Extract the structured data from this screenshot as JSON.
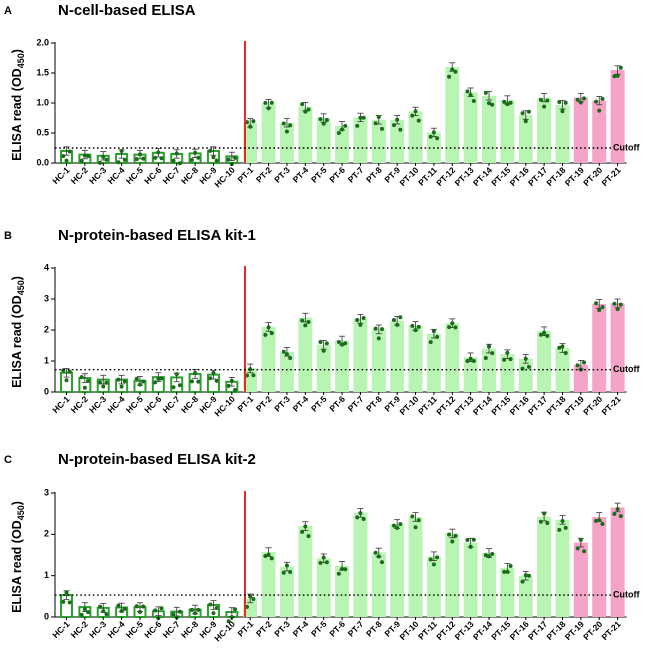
{
  "colors": {
    "hc_fill": "#ffffff",
    "hc_stroke": "#2ca02c",
    "pt_fill": "#b8f5b3",
    "pt_pink": "#f5a3c7",
    "dot": "#1a6b1a",
    "red_line": "#e8292b",
    "cutoff_line": "#000000"
  },
  "chart_data": [
    {
      "panel_letter": "A",
      "title": "N-cell-based ELISA",
      "type": "bar",
      "ylabel_main": "ELISA read (OD",
      "ylabel_sub": "450",
      "ylabel_close": ")",
      "ylim": [
        0,
        2.0
      ],
      "yticks": [
        0.0,
        0.5,
        1.0,
        1.5,
        2.0
      ],
      "ytick_labels": [
        "0.0",
        "0.5",
        "1.0",
        "1.5",
        "2.0"
      ],
      "cutoff": 0.25,
      "cutoff_label": "Cutoff",
      "categories": [
        "HC-1",
        "HC-2",
        "HC-3",
        "HC-4",
        "HC-5",
        "HC-6",
        "HC-7",
        "HC-8",
        "HC-9",
        "HC-10",
        "PT-1",
        "PT-2",
        "PT-3",
        "PT-4",
        "PT-5",
        "PT-6",
        "PT-7",
        "PT-8",
        "PT-9",
        "PT-10",
        "PT-11",
        "PT-12",
        "PT-13",
        "PT-14",
        "PT-15",
        "PT-16",
        "PT-17",
        "PT-18",
        "PT-19",
        "PT-20",
        "PT-21"
      ],
      "groups": [
        "HC",
        "HC",
        "HC",
        "HC",
        "HC",
        "HC",
        "HC",
        "HC",
        "HC",
        "HC",
        "PT",
        "PT",
        "PT",
        "PT",
        "PT",
        "PT",
        "PT",
        "PT",
        "PT",
        "PT",
        "PT",
        "PT",
        "PT",
        "PT",
        "PT",
        "PT",
        "PT",
        "PT",
        "PT-pink",
        "PT-pink",
        "PT-pink"
      ],
      "values": [
        0.2,
        0.14,
        0.12,
        0.15,
        0.14,
        0.17,
        0.15,
        0.16,
        0.2,
        0.11,
        0.67,
        0.99,
        0.67,
        0.94,
        0.75,
        0.62,
        0.76,
        0.72,
        0.72,
        0.86,
        0.51,
        1.6,
        1.18,
        1.12,
        1.05,
        0.8,
        1.09,
        0.97,
        1.09,
        1.04,
        1.55
      ]
    },
    {
      "panel_letter": "B",
      "title": "N-protein-based ELISA kit-1",
      "type": "bar",
      "ylabel_main": "ELISA read (OD",
      "ylabel_sub": "450",
      "ylabel_close": ")",
      "ylim": [
        0,
        4
      ],
      "yticks": [
        0,
        1,
        2,
        3,
        4
      ],
      "ytick_labels": [
        "0",
        "1",
        "2",
        "3",
        "4"
      ],
      "cutoff": 0.72,
      "cutoff_label": "Cutoff",
      "categories": [
        "HC-1",
        "HC-2",
        "HC-3",
        "HC-4",
        "HC-5",
        "HC-6",
        "HC-7",
        "HC-8",
        "HC-9",
        "HC-10",
        "PT-1",
        "PT-2",
        "PT-3",
        "PT-4",
        "PT-5",
        "PT-6",
        "PT-7",
        "PT-8",
        "PT-9",
        "PT-10",
        "PT-11",
        "PT-12",
        "PT-13",
        "PT-14",
        "PT-15",
        "PT-16",
        "PT-17",
        "PT-18",
        "PT-19",
        "PT-20",
        "PT-21"
      ],
      "groups": [
        "HC",
        "HC",
        "HC",
        "HC",
        "HC",
        "HC",
        "HC",
        "HC",
        "HC",
        "HC",
        "PT",
        "PT",
        "PT",
        "PT",
        "PT",
        "PT",
        "PT",
        "PT",
        "PT",
        "PT",
        "PT",
        "PT",
        "PT",
        "PT",
        "PT",
        "PT",
        "PT",
        "PT",
        "PT-pink",
        "PT-pink",
        "PT-pink"
      ],
      "values": [
        0.62,
        0.45,
        0.4,
        0.4,
        0.36,
        0.48,
        0.47,
        0.58,
        0.56,
        0.33,
        0.76,
        2.1,
        1.3,
        2.4,
        1.52,
        1.66,
        2.36,
        2.02,
        2.3,
        2.13,
        1.88,
        2.22,
        1.12,
        1.4,
        1.22,
        1.07,
        1.96,
        1.42,
        0.88,
        2.84,
        2.86
      ]
    },
    {
      "panel_letter": "C",
      "title": "N-protein-based ELISA kit-2",
      "type": "bar",
      "ylabel_main": "ELISA read (OD",
      "ylabel_sub": "450",
      "ylabel_close": ")",
      "ylim": [
        0,
        3
      ],
      "yticks": [
        0,
        1,
        2,
        3
      ],
      "ytick_labels": [
        "0",
        "1",
        "2",
        "3"
      ],
      "cutoff": 0.53,
      "cutoff_label": "Cutoff",
      "categories": [
        "HC-1",
        "HC-2",
        "HC-3",
        "HC-4",
        "HC-5",
        "HC-6",
        "HC-7",
        "HC-8",
        "HC-9",
        "HC-10",
        "PT-1",
        "PT-2",
        "PT-3",
        "PT-4",
        "PT-5",
        "PT-6",
        "PT-7",
        "PT-8",
        "PT-9",
        "PT-10",
        "PT-11",
        "PT-12",
        "PT-13",
        "PT-14",
        "PT-15",
        "PT-16",
        "PT-17",
        "PT-18",
        "PT-19",
        "PT-20",
        "PT-21"
      ],
      "groups": [
        "HC",
        "HC",
        "HC",
        "HC",
        "HC",
        "HC",
        "HC",
        "HC",
        "HC",
        "HC",
        "PT",
        "PT",
        "PT",
        "PT",
        "PT",
        "PT",
        "PT",
        "PT",
        "PT",
        "PT",
        "PT",
        "PT",
        "PT",
        "PT",
        "PT",
        "PT",
        "PT",
        "PT",
        "PT-pink",
        "PT-pink",
        "PT-pink"
      ],
      "values": [
        0.53,
        0.24,
        0.22,
        0.23,
        0.24,
        0.14,
        0.13,
        0.18,
        0.29,
        0.12,
        0.45,
        1.57,
        1.22,
        2.2,
        1.42,
        1.24,
        2.52,
        1.56,
        2.25,
        2.42,
        1.47,
        2.02,
        1.8,
        1.55,
        1.19,
        1.0,
        2.43,
        2.35,
        1.8,
        2.42,
        2.65
      ]
    }
  ]
}
